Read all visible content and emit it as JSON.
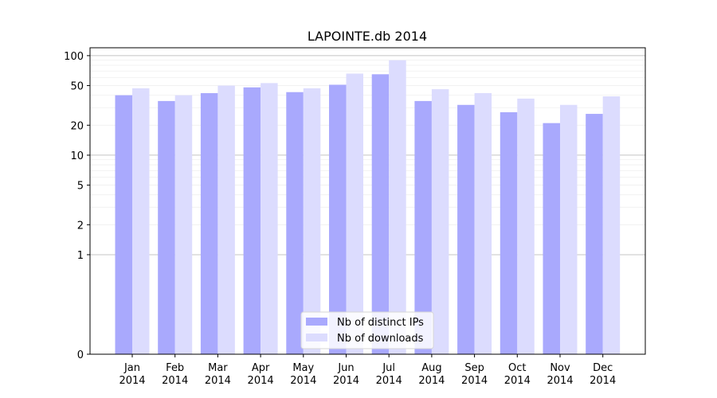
{
  "chart_data": {
    "type": "bar",
    "title": "LAPOINTE.db 2014",
    "xlabel": "",
    "ylabel": "",
    "yscale": "symlog",
    "ylim": [
      0,
      120
    ],
    "yticks": [
      0,
      1,
      2,
      5,
      10,
      20,
      50,
      100
    ],
    "ytick_labels": [
      "0",
      "1",
      "2",
      "5",
      "10",
      "20",
      "50",
      "100"
    ],
    "grid": true,
    "legend_position": "bottom-center",
    "categories": [
      [
        "Jan",
        "2014"
      ],
      [
        "Feb",
        "2014"
      ],
      [
        "Mar",
        "2014"
      ],
      [
        "Apr",
        "2014"
      ],
      [
        "May",
        "2014"
      ],
      [
        "Jun",
        "2014"
      ],
      [
        "Jul",
        "2014"
      ],
      [
        "Aug",
        "2014"
      ],
      [
        "Sep",
        "2014"
      ],
      [
        "Oct",
        "2014"
      ],
      [
        "Nov",
        "2014"
      ],
      [
        "Dec",
        "2014"
      ]
    ],
    "series": [
      {
        "name": "Nb of distinct IPs",
        "color": "#a9a9fd",
        "values": [
          40,
          35,
          42,
          48,
          43,
          51,
          65,
          35,
          32,
          27,
          21,
          26
        ]
      },
      {
        "name": "Nb of downloads",
        "color": "#dcdcfe",
        "values": [
          47,
          40,
          50,
          53,
          47,
          66,
          90,
          46,
          42,
          37,
          32,
          39
        ]
      }
    ]
  }
}
